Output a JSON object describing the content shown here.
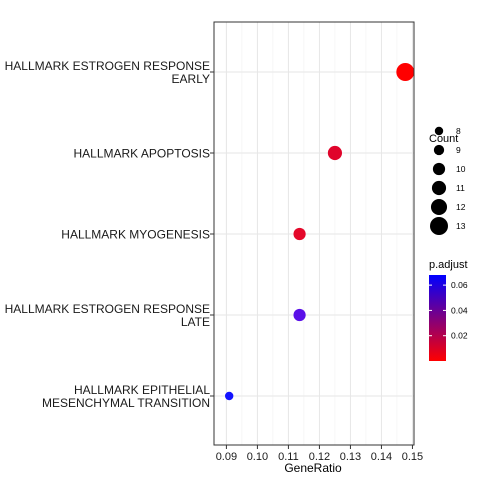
{
  "chart_data": {
    "type": "scatter",
    "title": "",
    "xlabel": "GeneRatio",
    "ylabel": "",
    "xlim": [
      0.086,
      0.1505
    ],
    "x_ticks": [
      0.09,
      0.1,
      0.11,
      0.12,
      0.13,
      0.14,
      0.15
    ],
    "x_tick_labels": [
      "0.09",
      "0.10",
      "0.11",
      "0.12",
      "0.13",
      "0.14",
      "0.15"
    ],
    "grid": true,
    "categories": [
      [
        "HALLMARK ESTROGEN RESPONSE",
        "EARLY"
      ],
      [
        "HALLMARK APOPTOSIS"
      ],
      [
        "HALLMARK MYOGENESIS"
      ],
      [
        "HALLMARK ESTROGEN RESPONSE",
        "LATE"
      ],
      [
        "HALLMARK EPITHELIAL",
        "MESENCHYMAL TRANSITION"
      ]
    ],
    "points": [
      {
        "x": 0.1477,
        "count": 13,
        "p_adjust": 0.0,
        "color": "#FF0000"
      },
      {
        "x": 0.125,
        "count": 11,
        "p_adjust": 0.01,
        "color": "#E0042B"
      },
      {
        "x": 0.1136,
        "count": 10,
        "p_adjust": 0.011,
        "color": "#E4082A"
      },
      {
        "x": 0.1136,
        "count": 10,
        "p_adjust": 0.06,
        "color": "#5A10E8"
      },
      {
        "x": 0.0909,
        "count": 8,
        "p_adjust": 0.066,
        "color": "#1313FF"
      }
    ],
    "legend_size": {
      "title": "Count",
      "values": [
        8,
        9,
        10,
        11,
        12,
        13
      ],
      "labels": [
        "8",
        "9",
        "10",
        "11",
        "12",
        "13"
      ],
      "placement": "right"
    },
    "legend_color": {
      "title": "p.adjust",
      "range": [
        0.0,
        0.068
      ],
      "ticks": [
        0.02,
        0.04,
        0.06
      ],
      "tick_labels": [
        "0.02",
        "0.04",
        "0.06"
      ],
      "low_color": "#FF0000",
      "high_color": "#0000FF",
      "placement": "right"
    }
  }
}
